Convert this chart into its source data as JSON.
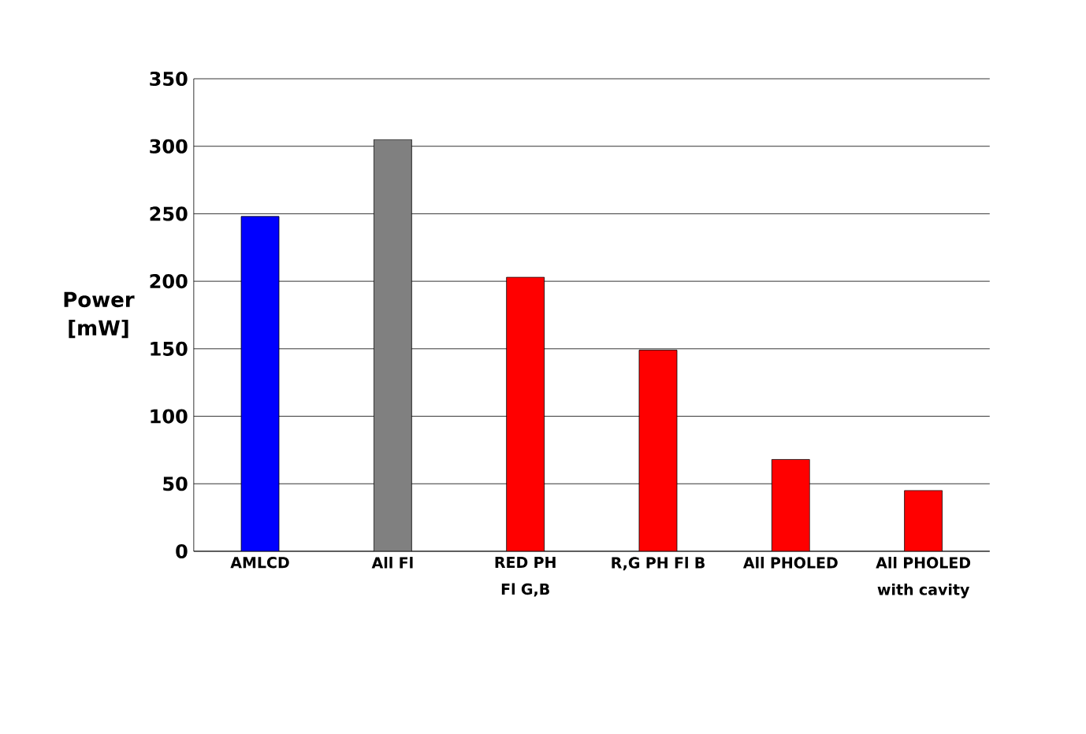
{
  "chart_data": {
    "type": "bar",
    "ylabel": "Power [mW]",
    "categories": [
      "AMLCD",
      "All Fl",
      "RED PH Fl G,B",
      "R,G PH Fl B",
      "All PHOLED",
      "All PHOLED with cavity"
    ],
    "values": [
      248,
      305,
      203,
      149,
      68,
      45
    ],
    "colors": [
      "#0000ff",
      "#808080",
      "#ff0000",
      "#ff0000",
      "#ff0000",
      "#ff0000"
    ],
    "ylim": [
      0,
      350
    ],
    "yticks": [
      0,
      50,
      100,
      150,
      200,
      250,
      300,
      350
    ],
    "grid": "y"
  }
}
